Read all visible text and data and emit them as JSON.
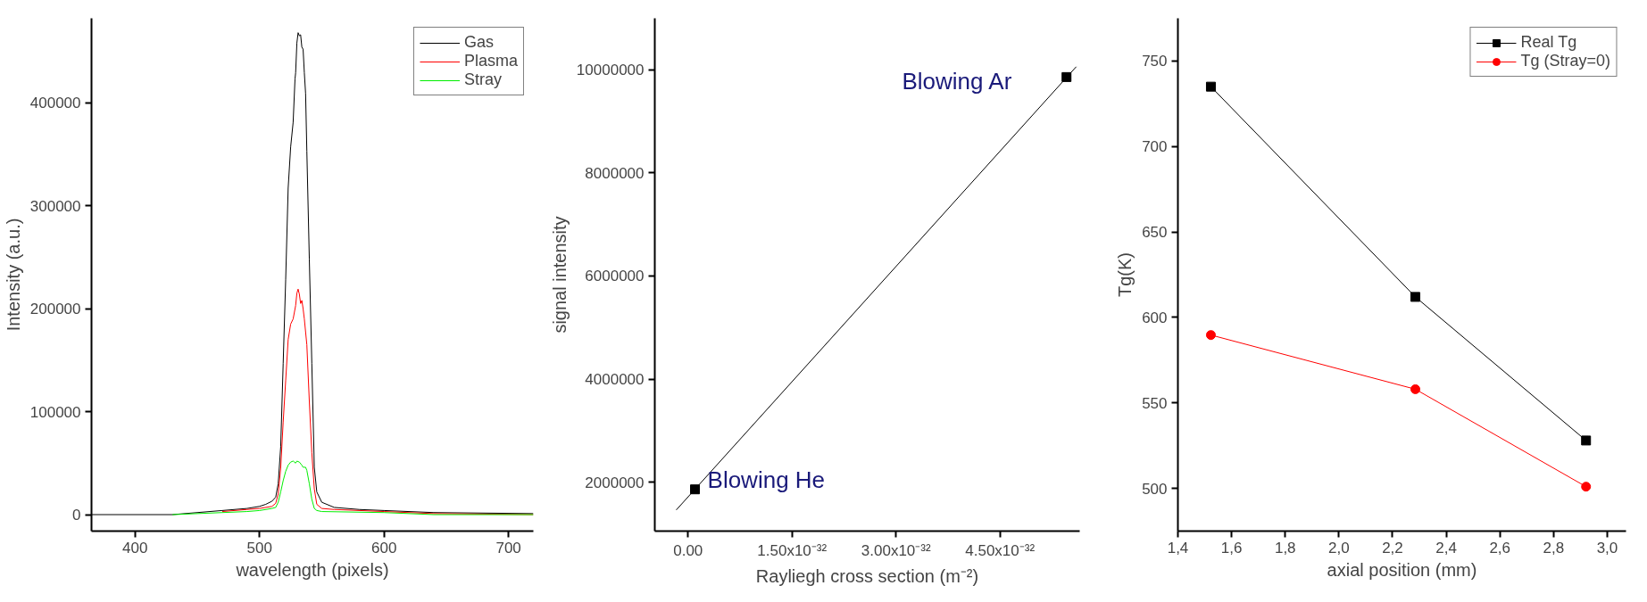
{
  "chart_data": [
    {
      "type": "line",
      "xlabel": "wavelength (pixels)",
      "ylabel": "Intensity (a.u.)",
      "xlim": [
        365,
        720
      ],
      "ylim": [
        -16000,
        482000
      ],
      "xticks": [
        400,
        500,
        600,
        700
      ],
      "yticks": [
        0,
        100000,
        200000,
        300000,
        400000
      ],
      "grid": false,
      "legend": "top right",
      "series": [
        {
          "name": "Gas",
          "color": "#000000",
          "x": [
            365,
            430,
            450,
            470,
            490,
            500,
            505,
            510,
            513,
            515,
            517,
            519,
            521,
            523,
            525,
            527,
            528.5,
            529,
            530,
            531,
            532,
            533,
            534,
            535,
            536,
            537,
            538,
            540,
            542,
            544,
            546,
            550,
            560,
            580,
            600,
            640,
            720
          ],
          "values": [
            0,
            0,
            2000,
            4000,
            6000,
            8000,
            10000,
            13000,
            17000,
            30000,
            66000,
            147000,
            228000,
            317000,
            357000,
            381000,
            423000,
            429000,
            458000,
            468000,
            465000,
            466000,
            454000,
            452000,
            429000,
            409000,
            353000,
            248000,
            147000,
            46000,
            22000,
            12000,
            7000,
            5000,
            4000,
            2000,
            1000
          ]
        },
        {
          "name": "Plasma",
          "color": "#ff0000",
          "x": [
            470,
            490,
            500,
            510,
            513,
            515,
            517,
            519,
            521,
            523,
            525,
            527,
            529,
            530,
            531,
            532,
            533,
            534,
            535,
            536,
            538,
            540,
            542,
            544,
            546,
            550,
            560,
            600,
            640,
            720
          ],
          "values": [
            3000,
            5000,
            6000,
            8000,
            11000,
            20000,
            45000,
            90000,
            130000,
            170000,
            185000,
            190000,
            203000,
            215000,
            219000,
            214000,
            205000,
            208000,
            200000,
            190000,
            165000,
            110000,
            60000,
            25000,
            10000,
            6000,
            5000,
            3000,
            1000,
            0
          ]
        },
        {
          "name": "Stray",
          "color": "#00ee00",
          "x": [
            430,
            450,
            470,
            490,
            500,
            510,
            513,
            515,
            517,
            519,
            521,
            523,
            525,
            527,
            529,
            530,
            532,
            534,
            535,
            537,
            538,
            540,
            542,
            544,
            546,
            550,
            600,
            640,
            720
          ],
          "values": [
            0,
            1000,
            2000,
            3000,
            4000,
            6000,
            7000,
            12000,
            22000,
            33000,
            42000,
            48000,
            51000,
            52000,
            50000,
            52000,
            51000,
            48000,
            46000,
            46000,
            43000,
            30000,
            15000,
            6000,
            4000,
            3000,
            2000,
            0,
            0
          ]
        }
      ]
    },
    {
      "type": "scatter",
      "xlabel": "Rayliegh cross section (m⁻²)",
      "ylabel": "signal intensity",
      "xlim": [
        -4.8e-33,
        5.65e-32
      ],
      "ylim": [
        1050000,
        11000000
      ],
      "xticks": [
        {
          "value": 0,
          "label": "0.00"
        },
        {
          "value": 1.5e-32,
          "label": "1.50x10⁻³²"
        },
        {
          "value": 3e-32,
          "label": "3.00x10⁻³²"
        },
        {
          "value": 4.5e-32,
          "label": "4.50x10⁻³²"
        }
      ],
      "yticks": [
        2000000,
        4000000,
        6000000,
        8000000,
        10000000
      ],
      "grid": false,
      "annotations": [
        {
          "text": "Blowing He",
          "x": 1e-33,
          "y": 1860000
        },
        {
          "text": "Blowing Ar",
          "x": 5.46e-32,
          "y": 9860000
        }
      ],
      "series": [
        {
          "type": "scatter",
          "marker": "square",
          "color": "#000000",
          "x": [
            1e-33,
            5.46e-32
          ],
          "values": [
            1860000,
            9860000
          ]
        },
        {
          "type": "line",
          "marker": "none",
          "color": "#000000",
          "x": [
            -1.7e-33,
            5.6e-32
          ],
          "values": [
            1460000,
            10060000
          ]
        }
      ]
    },
    {
      "type": "line",
      "xlabel": "axial position (mm)",
      "ylabel": "Tg(K)",
      "xlim": [
        1.4,
        3.07
      ],
      "ylim": [
        475,
        775
      ],
      "xticks": [
        {
          "value": 1.4,
          "label": "1,4"
        },
        {
          "value": 1.6,
          "label": "1,6"
        },
        {
          "value": 1.8,
          "label": "1,8"
        },
        {
          "value": 2.0,
          "label": "2,0"
        },
        {
          "value": 2.2,
          "label": "2,2"
        },
        {
          "value": 2.4,
          "label": "2,4"
        },
        {
          "value": 2.6,
          "label": "2,6"
        },
        {
          "value": 2.8,
          "label": "2,8"
        },
        {
          "value": 3.0,
          "label": "3,0"
        }
      ],
      "yticks": [
        500,
        550,
        600,
        650,
        700,
        750
      ],
      "grid": false,
      "legend": "top right",
      "x": [
        1.523,
        2.285,
        2.921
      ],
      "series": [
        {
          "name": "Real Tg",
          "color": "#000000",
          "marker": "square",
          "values": [
            735,
            612,
            528
          ]
        },
        {
          "name": "Tg (Stray=0)",
          "color": "#ff0000",
          "marker": "circle",
          "values": [
            589.7,
            558,
            501
          ]
        }
      ]
    }
  ]
}
